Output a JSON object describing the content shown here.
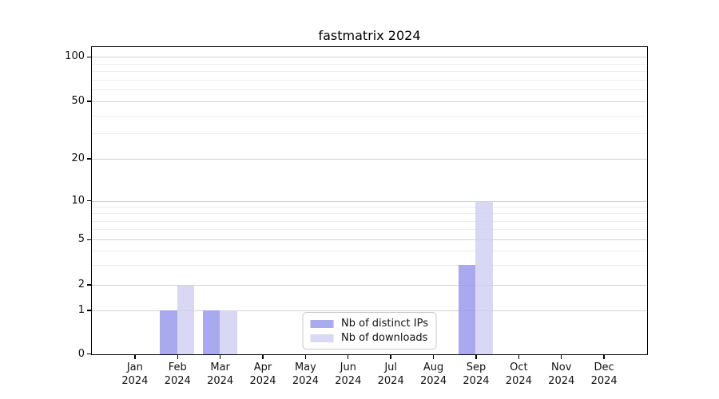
{
  "title": "fastmatrix 2024",
  "colors": {
    "bar_distinct_ips": "#aaaaef",
    "bar_downloads": "#d9d9f6",
    "bar_distinct_ips_rgba": "rgba(150,150,235,0.82)",
    "bar_downloads_rgba": "rgba(208,208,243,0.82)",
    "major_gridline": "#d2d2d2",
    "minor_gridline": "#ededed",
    "axis_spine": "#000000",
    "text": "#111111",
    "background": "#ffffff",
    "legend_border": "#c9c9c9"
  },
  "chart_data": {
    "type": "bar",
    "title": "fastmatrix 2024",
    "xlabel": "",
    "ylabel": "",
    "x": {
      "categories": [
        "Jan",
        "Feb",
        "Mar",
        "Apr",
        "May",
        "Jun",
        "Jul",
        "Aug",
        "Sep",
        "Oct",
        "Nov",
        "Dec"
      ],
      "year": "2024"
    },
    "series": [
      {
        "name": "Nb of distinct IPs",
        "solid_color": "#aaaaef",
        "fill_color": "rgba(150,150,235,0.82)",
        "values": [
          0,
          1,
          1,
          0,
          0,
          0,
          0,
          0,
          3,
          0,
          0,
          0
        ]
      },
      {
        "name": "Nb of downloads",
        "solid_color": "#d9d9f6",
        "fill_color": "rgba(208,208,243,0.82)",
        "values": [
          0,
          2,
          1,
          0,
          0,
          0,
          0,
          0,
          10,
          0,
          0,
          0
        ]
      }
    ],
    "yaxis": {
      "scale": "symlog-like",
      "major_ticks": [
        0,
        1,
        2,
        5,
        10,
        20,
        50,
        100
      ],
      "minor_gridlines": [
        3,
        4,
        6,
        7,
        8,
        9,
        30,
        40,
        60,
        70,
        80,
        90
      ],
      "anchor_fracs": [
        [
          0,
          0
        ],
        [
          1,
          0.142
        ],
        [
          2,
          0.225
        ],
        [
          5,
          0.373
        ],
        [
          10,
          0.5
        ],
        [
          20,
          0.637
        ],
        [
          50,
          0.824
        ],
        [
          100,
          0.969
        ]
      ]
    },
    "grid": "on",
    "legend": {
      "position": "lower center",
      "entries": [
        "Nb of distinct IPs",
        "Nb of downloads"
      ]
    }
  }
}
